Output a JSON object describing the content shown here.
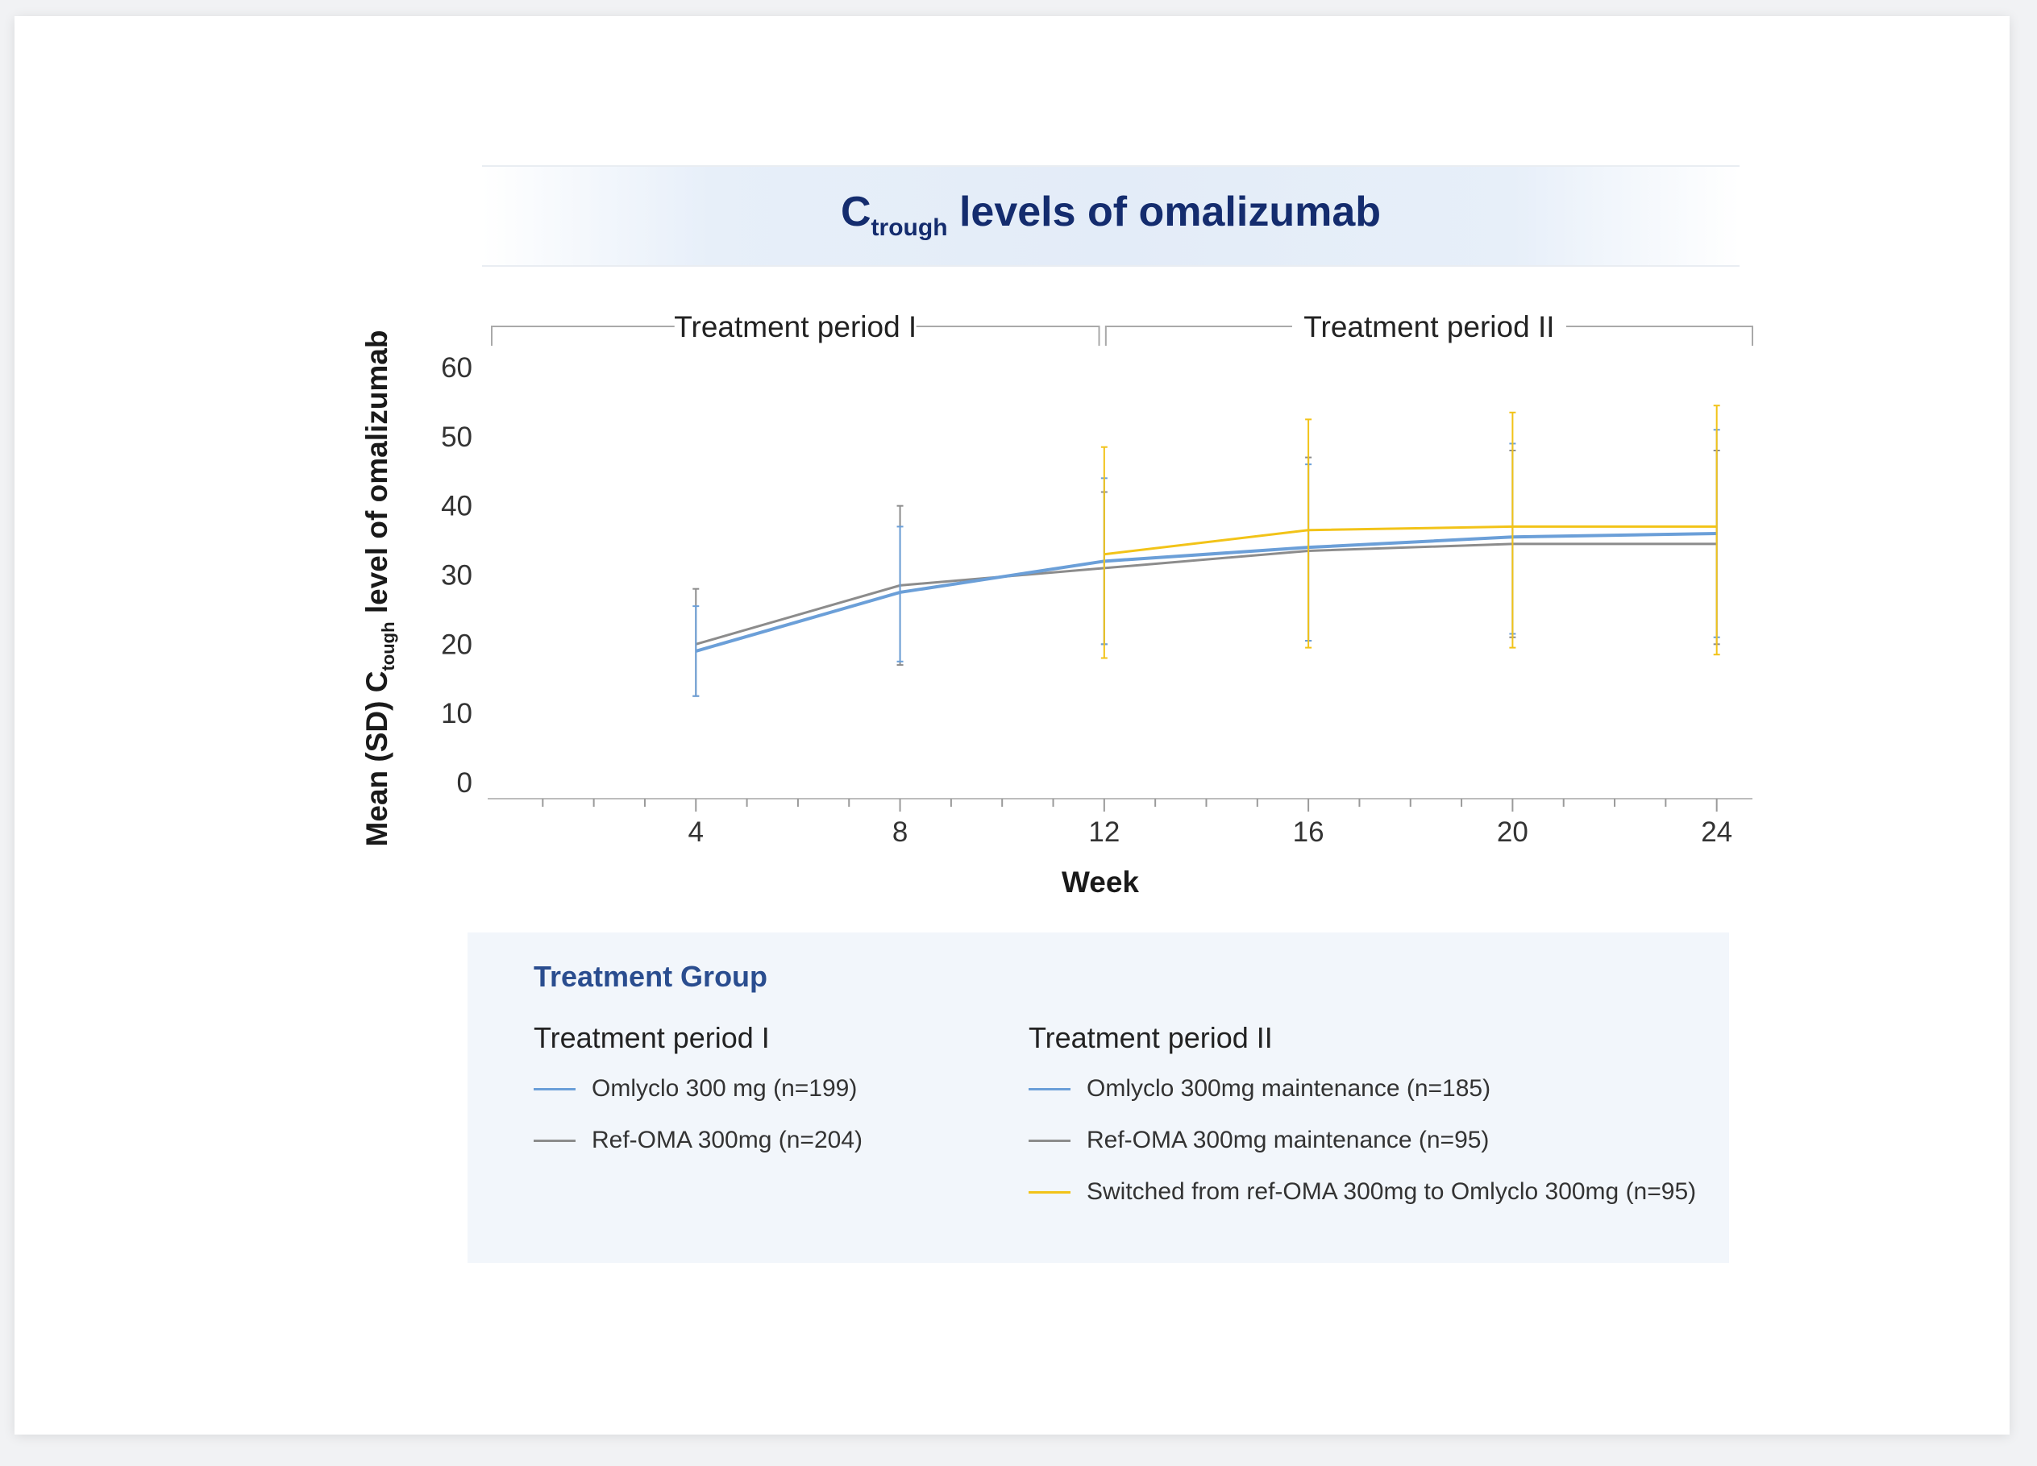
{
  "chart_data": {
    "type": "line",
    "title_main": "C",
    "title_sub": "trough",
    "title_rest": " levels of omalizumab",
    "ylabel_main": "Mean (SD) C",
    "ylabel_sub": "tough",
    "ylabel_rest": " level of omalizumab",
    "xlabel": "Week",
    "xlim": [
      0,
      24.7
    ],
    "ylim": [
      0,
      60
    ],
    "xticks": [
      4,
      8,
      12,
      16,
      20,
      24
    ],
    "yticks": [
      0,
      10,
      20,
      30,
      40,
      50,
      60
    ],
    "periods": [
      {
        "label": "Treatment period I",
        "start": 0,
        "end": 11.9
      },
      {
        "label": "Treatment period II",
        "start": 12,
        "end": 24.7
      }
    ],
    "series": [
      {
        "name": "Ref-OMA 300mg (n=204)",
        "color": "#8c8c8c",
        "points": [
          {
            "x": 4,
            "y": 20,
            "lo": 12.5,
            "hi": 28
          },
          {
            "x": 8,
            "y": 28.5,
            "lo": 17,
            "hi": 40
          },
          {
            "x": 12,
            "y": 31,
            "lo": 20,
            "hi": 42
          },
          {
            "x": 16,
            "y": 33.5,
            "lo": 20.5,
            "hi": 47
          },
          {
            "x": 20,
            "y": 34.5,
            "lo": 21,
            "hi": 48
          },
          {
            "x": 24,
            "y": 34.5,
            "lo": 20,
            "hi": 48
          }
        ]
      },
      {
        "name": "Omlyclo 300 mg (n=199)",
        "color": "#6b9fd8",
        "points": [
          {
            "x": 4,
            "y": 19,
            "lo": 12.5,
            "hi": 25.5
          },
          {
            "x": 8,
            "y": 27.5,
            "lo": 17.5,
            "hi": 37
          },
          {
            "x": 12,
            "y": 32,
            "lo": 20,
            "hi": 44
          },
          {
            "x": 16,
            "y": 34,
            "lo": 20.5,
            "hi": 46
          },
          {
            "x": 20,
            "y": 35.5,
            "lo": 21.5,
            "hi": 49
          },
          {
            "x": 24,
            "y": 36,
            "lo": 21,
            "hi": 51
          }
        ]
      },
      {
        "name": "Switched from ref-OMA 300mg to Omlyclo 300mg (n=95)",
        "color": "#f2c318",
        "points": [
          {
            "x": 12,
            "y": 33,
            "lo": 18,
            "hi": 48.5
          },
          {
            "x": 16,
            "y": 36.5,
            "lo": 19.5,
            "hi": 52.5
          },
          {
            "x": 20,
            "y": 37,
            "lo": 19.5,
            "hi": 53.5
          },
          {
            "x": 24,
            "y": 37,
            "lo": 18.5,
            "hi": 54.5
          }
        ]
      }
    ]
  },
  "legend": {
    "title": "Treatment Group",
    "col1": {
      "heading": "Treatment period I",
      "items": [
        {
          "label": "Omlyclo 300 mg (n=199)",
          "color": "#6b9fd8"
        },
        {
          "label": "Ref-OMA 300mg (n=204)",
          "color": "#8c8c8c"
        }
      ]
    },
    "col2": {
      "heading": "Treatment period II",
      "items": [
        {
          "label": "Omlyclo 300mg maintenance (n=185)",
          "color": "#6b9fd8"
        },
        {
          "label": "Ref-OMA 300mg maintenance (n=95)",
          "color": "#8c8c8c"
        },
        {
          "label": "Switched from ref-OMA 300mg to Omlyclo 300mg (n=95)",
          "color": "#f2c318"
        }
      ]
    }
  }
}
